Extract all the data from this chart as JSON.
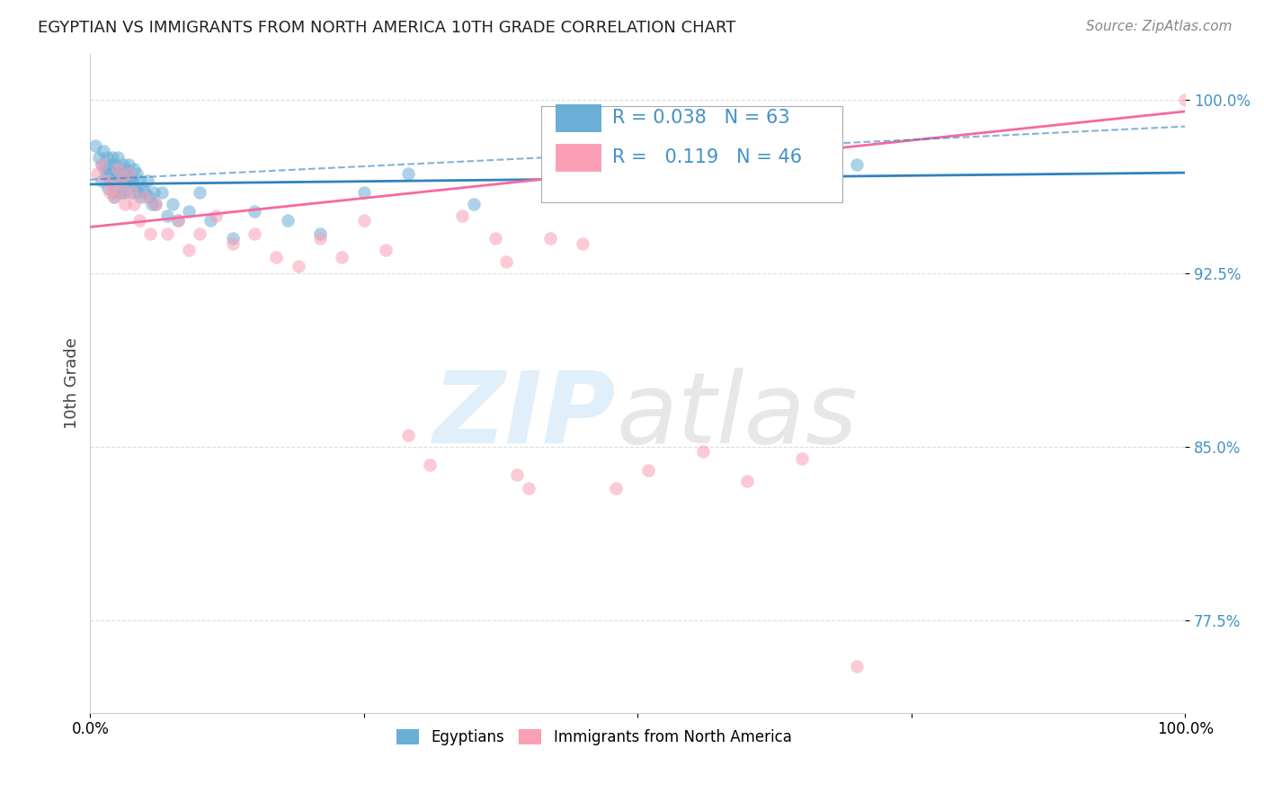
{
  "title": "EGYPTIAN VS IMMIGRANTS FROM NORTH AMERICA 10TH GRADE CORRELATION CHART",
  "source": "Source: ZipAtlas.com",
  "ylabel": "10th Grade",
  "y_ticks": [
    0.775,
    0.85,
    0.925,
    1.0
  ],
  "y_tick_labels": [
    "77.5%",
    "85.0%",
    "92.5%",
    "100.0%"
  ],
  "xlim": [
    0.0,
    1.0
  ],
  "ylim": [
    0.735,
    1.02
  ],
  "legend_label1": "Egyptians",
  "legend_label2": "Immigrants from North America",
  "R1": 0.038,
  "N1": 63,
  "R2": 0.119,
  "N2": 46,
  "color_blue": "#6baed6",
  "color_pink": "#fa9fb5",
  "color_blue_line": "#3182bd",
  "color_pink_line": "#f768a1",
  "blue_points_x": [
    0.005,
    0.008,
    0.01,
    0.01,
    0.012,
    0.013,
    0.015,
    0.015,
    0.016,
    0.017,
    0.018,
    0.019,
    0.02,
    0.02,
    0.021,
    0.022,
    0.022,
    0.023,
    0.024,
    0.025,
    0.026,
    0.027,
    0.028,
    0.029,
    0.03,
    0.03,
    0.031,
    0.032,
    0.033,
    0.034,
    0.035,
    0.036,
    0.037,
    0.038,
    0.04,
    0.041,
    0.042,
    0.043,
    0.045,
    0.046,
    0.048,
    0.05,
    0.052,
    0.054,
    0.056,
    0.058,
    0.06,
    0.065,
    0.07,
    0.075,
    0.08,
    0.09,
    0.1,
    0.11,
    0.13,
    0.15,
    0.18,
    0.21,
    0.25,
    0.29,
    0.35,
    0.55,
    0.7
  ],
  "blue_points_y": [
    0.98,
    0.975,
    0.972,
    0.965,
    0.978,
    0.97,
    0.975,
    0.968,
    0.962,
    0.97,
    0.965,
    0.972,
    0.975,
    0.968,
    0.96,
    0.965,
    0.958,
    0.972,
    0.968,
    0.975,
    0.97,
    0.965,
    0.96,
    0.968,
    0.972,
    0.965,
    0.96,
    0.97,
    0.965,
    0.968,
    0.972,
    0.966,
    0.96,
    0.965,
    0.97,
    0.963,
    0.968,
    0.96,
    0.965,
    0.958,
    0.962,
    0.96,
    0.965,
    0.958,
    0.955,
    0.96,
    0.955,
    0.96,
    0.95,
    0.955,
    0.948,
    0.952,
    0.96,
    0.948,
    0.94,
    0.952,
    0.948,
    0.942,
    0.96,
    0.968,
    0.955,
    0.97,
    0.972
  ],
  "pink_points_x": [
    0.006,
    0.01,
    0.015,
    0.018,
    0.02,
    0.022,
    0.025,
    0.028,
    0.03,
    0.032,
    0.035,
    0.038,
    0.04,
    0.045,
    0.05,
    0.055,
    0.06,
    0.07,
    0.08,
    0.09,
    0.1,
    0.115,
    0.13,
    0.15,
    0.17,
    0.19,
    0.21,
    0.23,
    0.25,
    0.27,
    0.29,
    0.31,
    0.34,
    0.37,
    0.38,
    0.39,
    0.4,
    0.42,
    0.45,
    0.48,
    0.51,
    0.56,
    0.6,
    0.65,
    0.7,
    1.0
  ],
  "pink_points_y": [
    0.968,
    0.972,
    0.965,
    0.96,
    0.962,
    0.958,
    0.97,
    0.965,
    0.96,
    0.955,
    0.968,
    0.96,
    0.955,
    0.948,
    0.958,
    0.942,
    0.955,
    0.942,
    0.948,
    0.935,
    0.942,
    0.95,
    0.938,
    0.942,
    0.932,
    0.928,
    0.94,
    0.932,
    0.948,
    0.935,
    0.855,
    0.842,
    0.95,
    0.94,
    0.93,
    0.838,
    0.832,
    0.94,
    0.938,
    0.832,
    0.84,
    0.848,
    0.835,
    0.845,
    0.755,
    1.0
  ],
  "blue_line_x": [
    0.0,
    1.0
  ],
  "blue_line_y_start": 0.9635,
  "blue_line_y_end": 0.9685,
  "pink_line_y_start": 0.945,
  "pink_line_y_end": 0.995
}
